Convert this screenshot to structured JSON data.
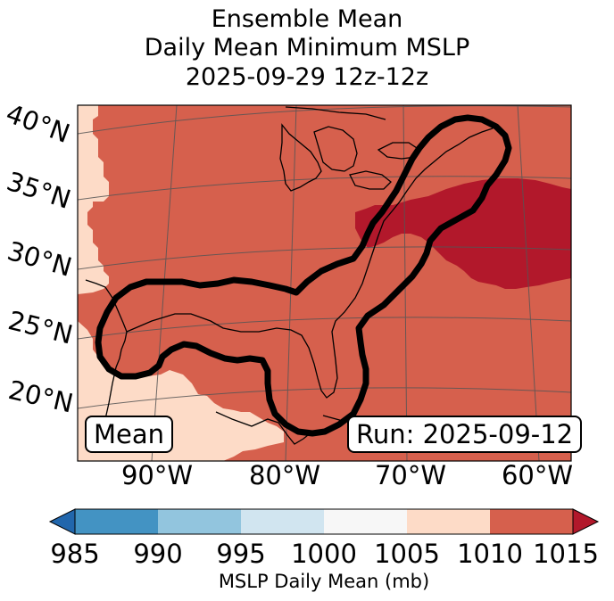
{
  "title": {
    "line1": "Ensemble Mean",
    "line2": "Daily Mean Minimum MSLP",
    "line3": "2025-09-29 12z-12z"
  },
  "map": {
    "lat_labels": [
      "40°N",
      "35°N",
      "30°N",
      "25°N",
      "20°N"
    ],
    "lon_labels": [
      "90°W",
      "80°W",
      "70°W",
      "60°W"
    ],
    "badge_left": "Mean",
    "badge_right": "Run: 2025-09-12",
    "field_colors": {
      "bin_1005_1010": "#fddbc7",
      "bin_1010_1015": "#d6604d",
      "bin_over_1015": "#b2182b"
    }
  },
  "colorbar": {
    "label": "MSLP Daily Mean (mb)",
    "ticks": [
      "985",
      "990",
      "995",
      "1000",
      "1005",
      "1010",
      "1015"
    ],
    "under_color": "#2166ac",
    "over_color": "#b2182b",
    "bins": [
      {
        "from": 985,
        "to": 990,
        "color": "#4393c3"
      },
      {
        "from": 990,
        "to": 995,
        "color": "#92c5de"
      },
      {
        "from": 995,
        "to": 1000,
        "color": "#d1e5f0"
      },
      {
        "from": 1000,
        "to": 1005,
        "color": "#f7f7f7"
      },
      {
        "from": 1005,
        "to": 1010,
        "color": "#fddbc7"
      },
      {
        "from": 1010,
        "to": 1015,
        "color": "#d6604d"
      }
    ]
  }
}
